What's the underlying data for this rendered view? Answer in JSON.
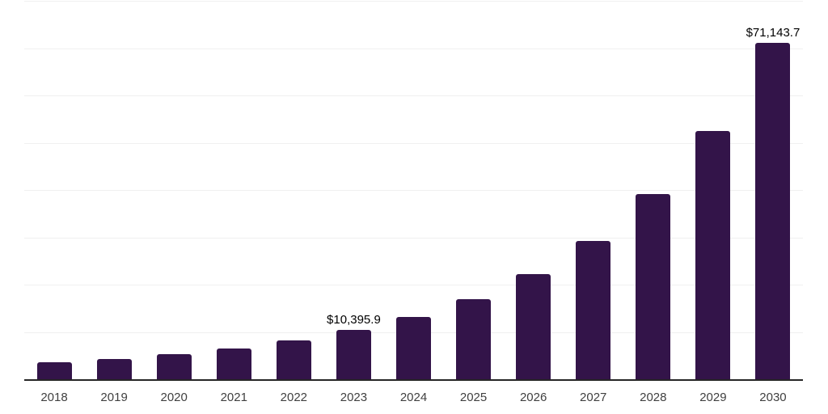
{
  "chart_data": {
    "type": "bar",
    "title": "",
    "xlabel": "",
    "ylabel": "",
    "categories": [
      "2018",
      "2019",
      "2020",
      "2021",
      "2022",
      "2023",
      "2024",
      "2025",
      "2026",
      "2027",
      "2028",
      "2029",
      "2030"
    ],
    "values": [
      3600,
      4300,
      5300,
      6500,
      8200,
      10395.9,
      13100,
      17000,
      22200,
      29300,
      39100,
      52500,
      71143.7
    ],
    "annotations": [
      {
        "category": "2023",
        "index": 5,
        "text": "$10,395.9"
      },
      {
        "category": "2030",
        "index": 12,
        "text": "$71,143.7"
      }
    ],
    "ylim": [
      0,
      80000
    ],
    "gridline_step": 10000,
    "grid": "horizontal-only",
    "y_axis_labels_visible": false,
    "legend_position": "none"
  },
  "colors": {
    "bar": "#331449",
    "gridline": "#f0f0f0",
    "axis_line": "#262626",
    "tick_label": "#404040",
    "data_label": "#000000",
    "background": "#ffffff"
  }
}
